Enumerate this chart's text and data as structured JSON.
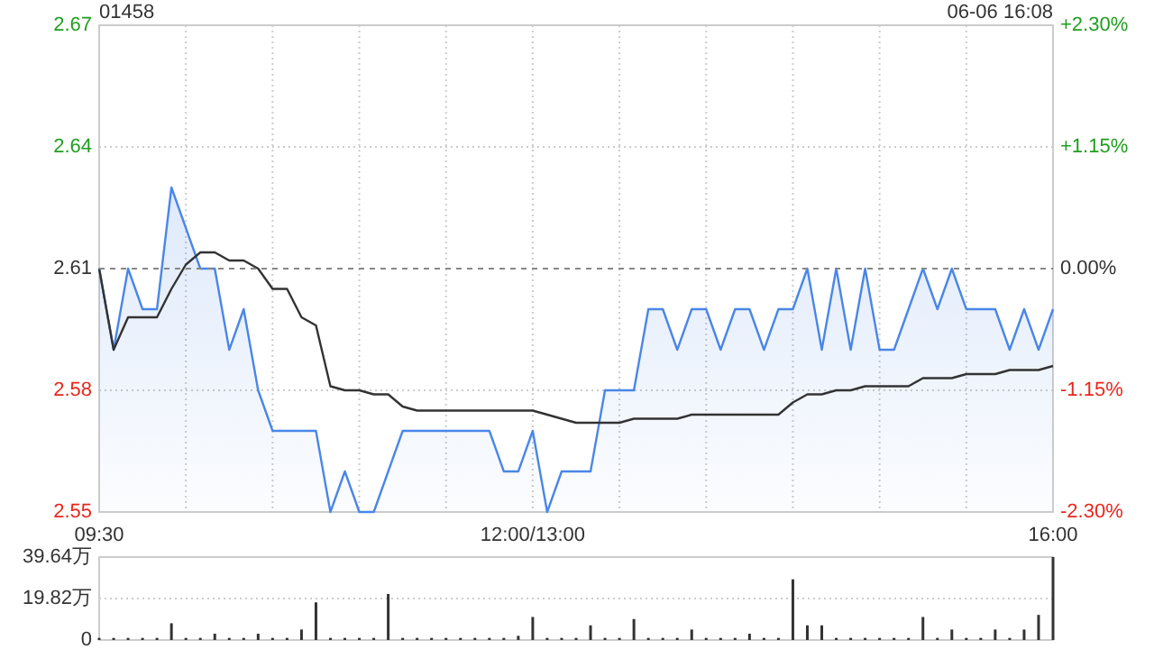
{
  "chart_data": [
    {
      "type": "line",
      "title": "01458",
      "annotations": [
        "06-06 16:08"
      ],
      "categories": [
        "09:30",
        null,
        null,
        null,
        null,
        null,
        null,
        null,
        null,
        null,
        null,
        null,
        null,
        null,
        null,
        null,
        null,
        null,
        null,
        null,
        null,
        null,
        null,
        null,
        null,
        null,
        null,
        null,
        null,
        null,
        "12:00/13:00",
        null,
        null,
        null,
        null,
        null,
        null,
        null,
        null,
        null,
        null,
        null,
        null,
        null,
        null,
        null,
        null,
        null,
        null,
        null,
        null,
        null,
        null,
        null,
        null,
        null,
        null,
        null,
        null,
        null,
        null,
        null,
        null,
        null,
        null,
        null,
        "16:00"
      ],
      "ylim": [
        2.55,
        2.67
      ],
      "yticks": [
        2.55,
        2.58,
        2.61,
        2.64,
        2.67
      ],
      "y2lim": [
        -2.3,
        2.3
      ],
      "y2ticks": [
        {
          "value": -2.3,
          "label": "-2.30%"
        },
        {
          "value": -1.15,
          "label": "-1.15%"
        },
        {
          "value": 0,
          "label": "0.00%"
        },
        {
          "value": 1.15,
          "label": "+1.15%"
        },
        {
          "value": 2.3,
          "label": "+2.30%"
        }
      ],
      "grid": true,
      "ref_lines": [
        {
          "axis": "y",
          "value": 2.61,
          "label": null,
          "color": "#888888",
          "line_style": "dashed"
        }
      ],
      "series": [
        {
          "type": "area",
          "color": "#4a86e8",
          "values": [
            2.61,
            2.59,
            2.61,
            2.6,
            2.6,
            2.63,
            2.62,
            2.61,
            2.61,
            2.59,
            2.6,
            2.58,
            2.57,
            2.57,
            2.57,
            2.57,
            2.55,
            2.56,
            2.55,
            2.55,
            2.56,
            2.57,
            2.57,
            2.57,
            2.57,
            2.57,
            2.57,
            2.57,
            2.56,
            2.56,
            2.57,
            2.55,
            2.56,
            2.56,
            2.56,
            2.58,
            2.58,
            2.58,
            2.6,
            2.6,
            2.59,
            2.6,
            2.6,
            2.59,
            2.6,
            2.6,
            2.59,
            2.6,
            2.6,
            2.61,
            2.59,
            2.61,
            2.59,
            2.61,
            2.59,
            2.59,
            2.6,
            2.61,
            2.6,
            2.61,
            2.6,
            2.6,
            2.6,
            2.59,
            2.6,
            2.59,
            2.6
          ]
        },
        {
          "color": "#333333",
          "values": [
            2.61,
            2.59,
            2.598,
            2.598,
            2.598,
            2.605,
            2.611,
            2.614,
            2.614,
            2.612,
            2.612,
            2.61,
            2.605,
            2.605,
            2.598,
            2.596,
            2.581,
            2.58,
            2.58,
            2.579,
            2.579,
            2.576,
            2.575,
            2.575,
            2.575,
            2.575,
            2.575,
            2.575,
            2.575,
            2.575,
            2.575,
            2.574,
            2.573,
            2.572,
            2.572,
            2.572,
            2.572,
            2.573,
            2.573,
            2.573,
            2.573,
            2.574,
            2.574,
            2.574,
            2.574,
            2.574,
            2.574,
            2.574,
            2.577,
            2.579,
            2.579,
            2.58,
            2.58,
            2.581,
            2.581,
            2.581,
            2.581,
            2.583,
            2.583,
            2.583,
            2.584,
            2.584,
            2.584,
            2.585,
            2.585,
            2.585,
            2.586
          ]
        }
      ]
    },
    {
      "type": "bar",
      "color": "#333333",
      "categories": [
        null,
        null,
        null,
        null,
        null,
        null,
        null,
        null,
        null,
        null,
        null,
        null,
        null,
        null,
        null,
        null,
        null,
        null,
        null,
        null,
        null,
        null,
        null,
        null,
        null,
        null,
        null,
        null,
        null,
        null,
        null,
        null,
        null,
        null,
        null,
        null,
        null,
        null,
        null,
        null,
        null,
        null,
        null,
        null,
        null,
        null,
        null,
        null,
        null,
        null,
        null,
        null,
        null,
        null,
        null,
        null,
        null,
        null,
        null,
        null,
        null,
        null,
        null,
        null,
        null,
        null,
        null
      ],
      "ylim": [
        0,
        39.64
      ],
      "yticks": [
        {
          "value": 0,
          "label": "0"
        },
        {
          "value": 19.82,
          "label": "19.82万"
        },
        {
          "value": 39.64,
          "label": "39.64万"
        }
      ],
      "grid": "y",
      "tick_labels": "y",
      "values": [
        1,
        1,
        1,
        1,
        1,
        8,
        1,
        1,
        3,
        1,
        1,
        3,
        1,
        1,
        5,
        18,
        1,
        1,
        1,
        1,
        22,
        1,
        1,
        1,
        1,
        1,
        1,
        1,
        1,
        2,
        11,
        1,
        1,
        1,
        7,
        1,
        1,
        10,
        1,
        1,
        1,
        5,
        1,
        1,
        1,
        3,
        1,
        1,
        29,
        7,
        7,
        1,
        1,
        1,
        1,
        1,
        1,
        11,
        1,
        5,
        1,
        1,
        5,
        1,
        5,
        12,
        39.64
      ]
    }
  ]
}
